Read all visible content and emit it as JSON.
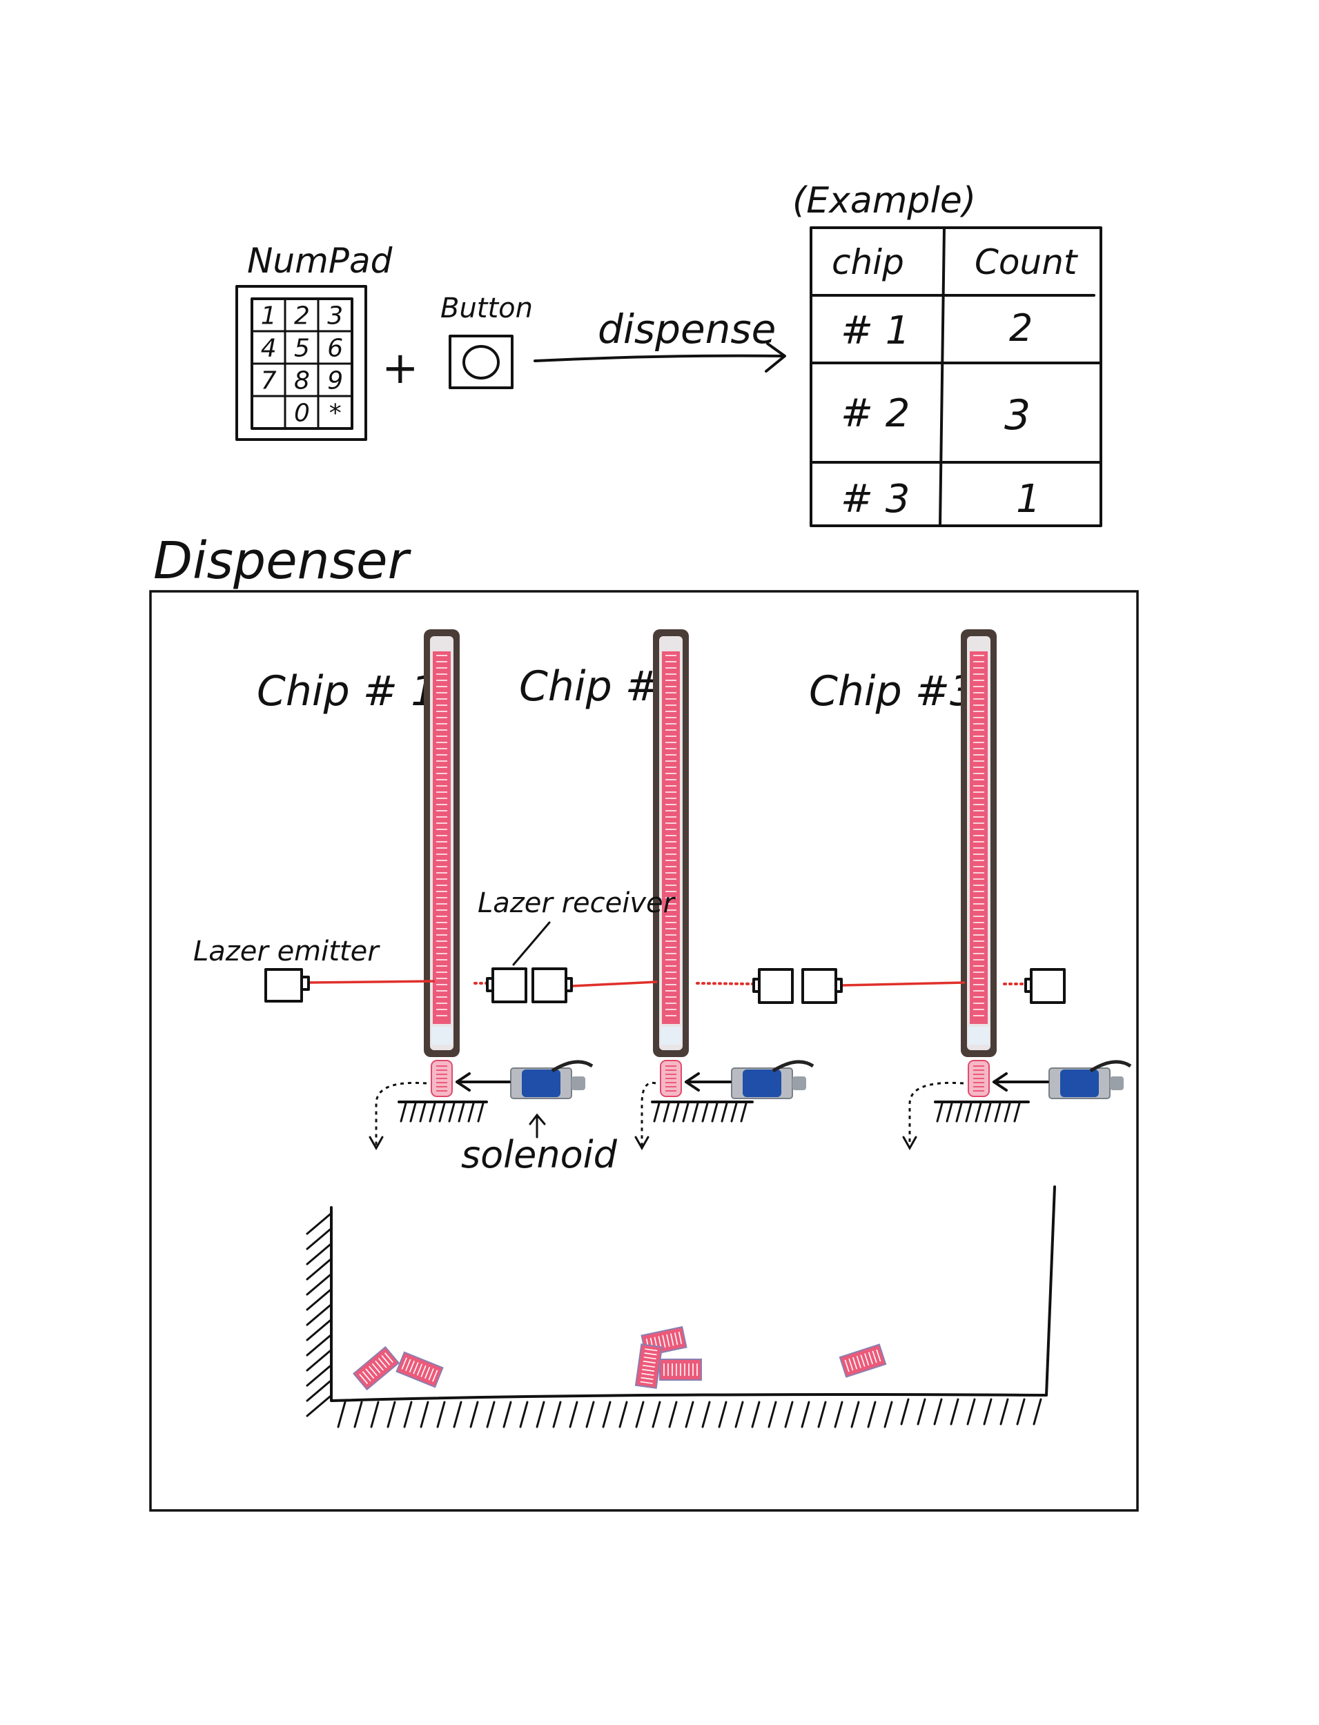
{
  "input": {
    "numpad_label": "NumPad",
    "keys": [
      "1",
      "2",
      "3",
      "4",
      "5",
      "6",
      "7",
      "8",
      "9",
      "",
      "0",
      "*"
    ],
    "plus": "+",
    "button_label": "Button",
    "arrow_label": "dispense"
  },
  "example_table": {
    "caption": "(Example)",
    "headers": [
      "chip",
      "Count"
    ],
    "rows": [
      {
        "chip": "# 1",
        "count": "2"
      },
      {
        "chip": "# 2",
        "count": "3"
      },
      {
        "chip": "# 3",
        "count": "1"
      }
    ]
  },
  "dispenser": {
    "title": "Dispenser",
    "chips": [
      {
        "label": "Chip # 1"
      },
      {
        "label": "Chip #2"
      },
      {
        "label": "Chip #3"
      }
    ],
    "laser_emitter_label": "Lazer emitter",
    "laser_receiver_label": "Lazer receiver",
    "solenoid_label": "solenoid"
  },
  "colors": {
    "ink": "#111111",
    "laser": "#e0302a",
    "chip_pink": "#ec5a7a",
    "tube_frame": "#4a3d38",
    "solenoid_blue": "#1f4fa8",
    "solenoid_silver": "#b8bcc2"
  }
}
